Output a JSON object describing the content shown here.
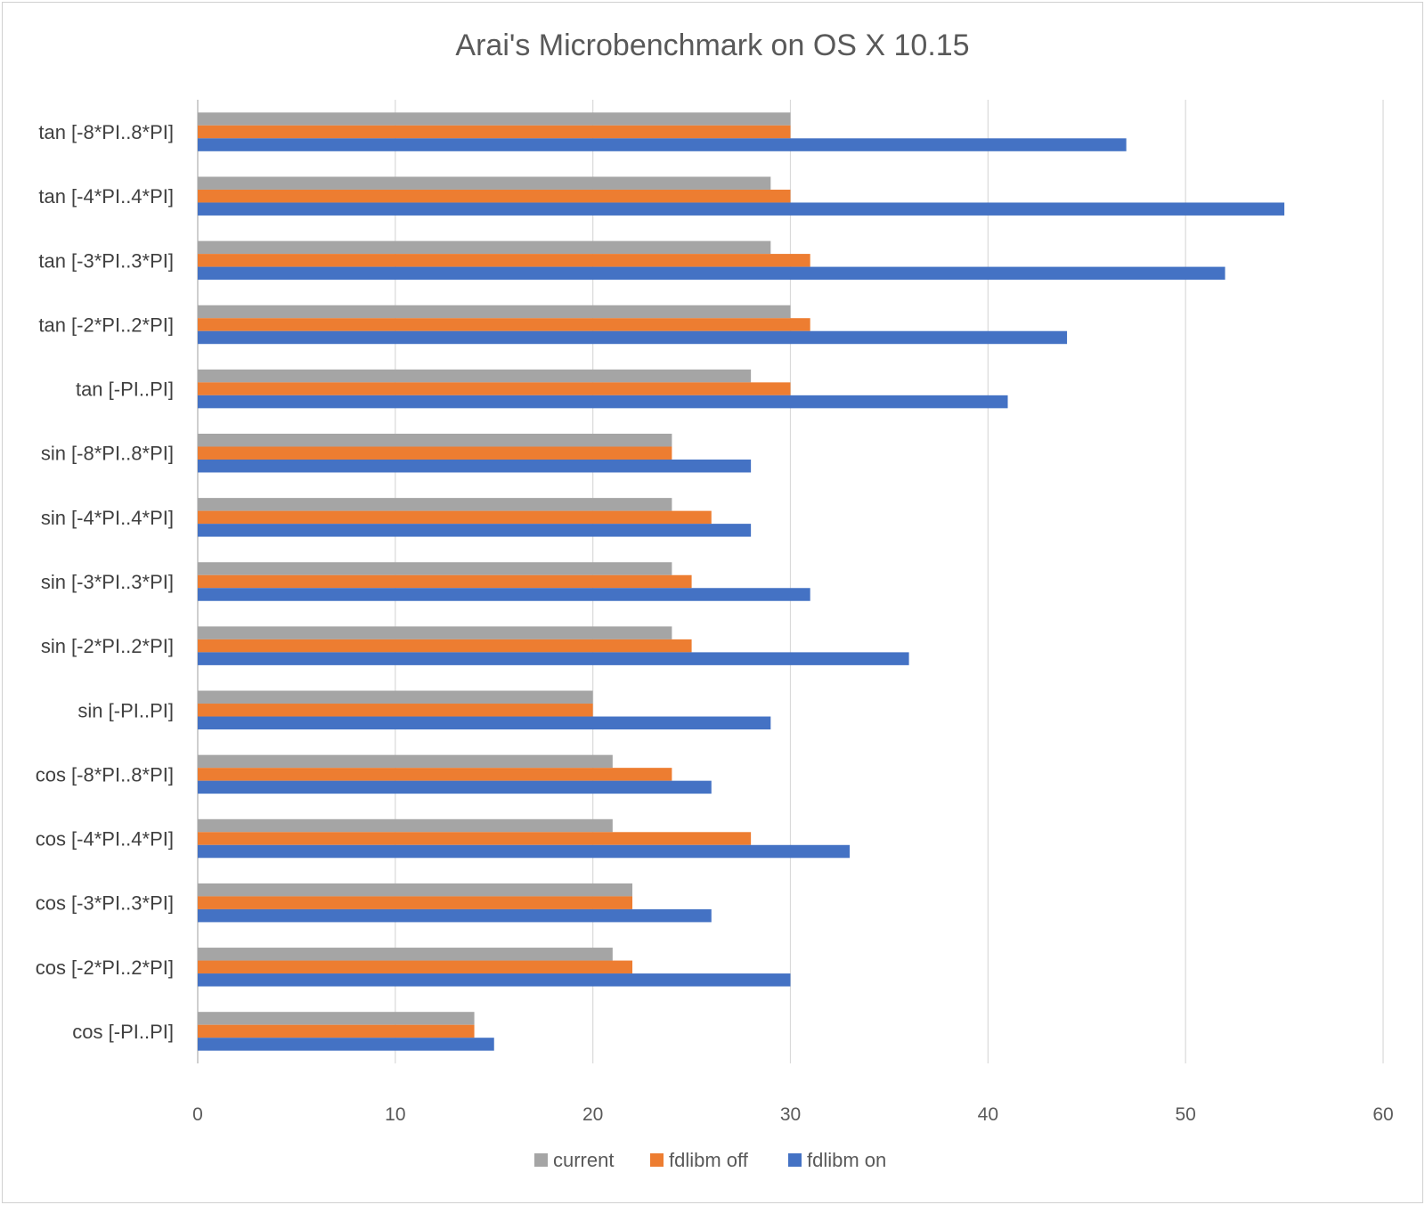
{
  "chart_data": {
    "type": "bar",
    "orientation": "horizontal",
    "title": "Arai's Microbenchmark on OS X 10.15",
    "xlabel": "",
    "ylabel": "",
    "xlim": [
      0,
      60
    ],
    "xticks": [
      0,
      10,
      20,
      30,
      40,
      50,
      60
    ],
    "grid": true,
    "legend_position": "bottom",
    "categories": [
      "tan [-8*PI..8*PI]",
      "tan [-4*PI..4*PI]",
      "tan [-3*PI..3*PI]",
      "tan [-2*PI..2*PI]",
      "tan [-PI..PI]",
      "sin [-8*PI..8*PI]",
      "sin [-4*PI..4*PI]",
      "sin [-3*PI..3*PI]",
      "sin [-2*PI..2*PI]",
      "sin [-PI..PI]",
      "cos [-8*PI..8*PI]",
      "cos [-4*PI..4*PI]",
      "cos [-3*PI..3*PI]",
      "cos [-2*PI..2*PI]",
      "cos [-PI..PI]"
    ],
    "series": [
      {
        "name": "current",
        "color": "#a5a5a5",
        "values": [
          30,
          29,
          29,
          30,
          28,
          24,
          24,
          24,
          24,
          20,
          21,
          21,
          22,
          21,
          14
        ]
      },
      {
        "name": "fdlibm off",
        "color": "#ed7d31",
        "values": [
          30,
          30,
          31,
          31,
          30,
          24,
          26,
          25,
          25,
          20,
          24,
          28,
          22,
          22,
          14
        ]
      },
      {
        "name": "fdlibm on",
        "color": "#4472c4",
        "values": [
          47,
          55,
          52,
          44,
          41,
          28,
          28,
          31,
          36,
          29,
          26,
          33,
          26,
          30,
          15
        ]
      }
    ],
    "gridline_color": "#d9d9d9"
  }
}
